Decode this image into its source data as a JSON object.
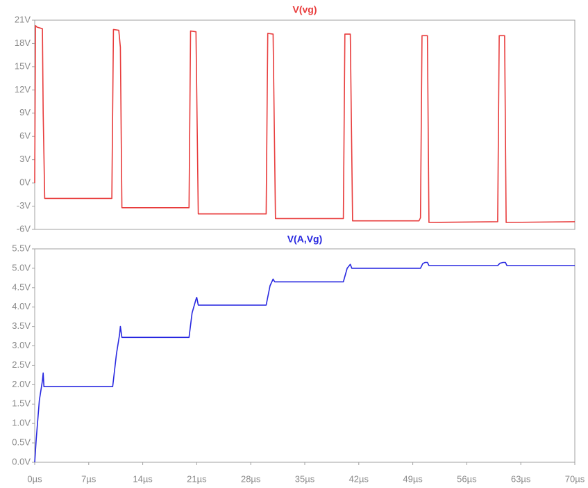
{
  "chart_data": [
    {
      "type": "line",
      "title": "V(vg)",
      "color": "#e83c3c",
      "x": [
        0,
        0.1,
        0.3,
        1.0,
        1.1,
        1.3,
        10.0,
        10.2,
        10.9,
        11.1,
        11.3,
        20.0,
        20.2,
        20.9,
        21.2,
        30.0,
        30.2,
        30.9,
        31.2,
        40.0,
        40.2,
        40.9,
        41.2,
        49.8,
        50.0,
        50.2,
        50.9,
        51.1,
        60.0,
        60.2,
        60.9,
        61.1,
        70
      ],
      "values": [
        0,
        20.3,
        20.1,
        19.9,
        9,
        -2,
        -2,
        19.8,
        19.7,
        17.5,
        -3.2,
        -3.2,
        19.6,
        19.5,
        -4,
        -4,
        19.3,
        19.2,
        -4.6,
        -4.6,
        19.2,
        19.2,
        -4.9,
        -4.9,
        -4.5,
        19.0,
        19.0,
        -5.1,
        -5.0,
        19.0,
        19.0,
        -5.1,
        -5.0
      ],
      "xlim": [
        0,
        70
      ],
      "ylim": [
        -6,
        21
      ],
      "yticks": [
        {
          "value": 21,
          "label": "21V"
        },
        {
          "value": 18,
          "label": "18V"
        },
        {
          "value": 15,
          "label": "15V"
        },
        {
          "value": 12,
          "label": "12V"
        },
        {
          "value": 9,
          "label": "9V"
        },
        {
          "value": 6,
          "label": "6V"
        },
        {
          "value": 3,
          "label": "3V"
        },
        {
          "value": 0,
          "label": "0V"
        },
        {
          "value": -3,
          "label": "-3V"
        },
        {
          "value": -6,
          "label": "-6V"
        }
      ]
    },
    {
      "type": "line",
      "title": "V(A,Vg)",
      "color": "#2828e0",
      "x": [
        0,
        0.2,
        0.6,
        1.0,
        1.1,
        1.2,
        10.1,
        10.6,
        11.0,
        11.1,
        11.3,
        20.0,
        20.4,
        20.9,
        21.0,
        21.2,
        30.0,
        30.5,
        30.9,
        31.1,
        40.0,
        40.5,
        40.9,
        41.1,
        50.0,
        50.3,
        50.6,
        50.9,
        51.1,
        60.0,
        60.3,
        60.7,
        61.0,
        61.2,
        70
      ],
      "values": [
        0,
        0.6,
        1.6,
        2.1,
        2.3,
        1.95,
        1.95,
        2.8,
        3.3,
        3.5,
        3.22,
        3.22,
        3.85,
        4.2,
        4.25,
        4.05,
        4.05,
        4.55,
        4.72,
        4.65,
        4.65,
        5.0,
        5.1,
        5.0,
        5.0,
        5.12,
        5.15,
        5.15,
        5.07,
        5.07,
        5.13,
        5.15,
        5.15,
        5.07,
        5.07
      ],
      "xlim": [
        0,
        70
      ],
      "ylim": [
        0,
        5.5
      ],
      "xticks": [
        {
          "value": 0,
          "label": "0µs"
        },
        {
          "value": 7,
          "label": "7µs"
        },
        {
          "value": 14,
          "label": "14µs"
        },
        {
          "value": 21,
          "label": "21µs"
        },
        {
          "value": 28,
          "label": "28µs"
        },
        {
          "value": 35,
          "label": "35µs"
        },
        {
          "value": 42,
          "label": "42µs"
        },
        {
          "value": 49,
          "label": "49µs"
        },
        {
          "value": 56,
          "label": "56µs"
        },
        {
          "value": 63,
          "label": "63µs"
        },
        {
          "value": 70,
          "label": "70µs"
        }
      ],
      "yticks": [
        {
          "value": 5.5,
          "label": "5.5V"
        },
        {
          "value": 5,
          "label": "5.0V"
        },
        {
          "value": 4.5,
          "label": "4.5V"
        },
        {
          "value": 4,
          "label": "4.0V"
        },
        {
          "value": 3.5,
          "label": "3.5V"
        },
        {
          "value": 3,
          "label": "3.0V"
        },
        {
          "value": 2.5,
          "label": "2.5V"
        },
        {
          "value": 2,
          "label": "2.0V"
        },
        {
          "value": 1.5,
          "label": "1.5V"
        },
        {
          "value": 1,
          "label": "1.0V"
        },
        {
          "value": 0.5,
          "label": "0.5V"
        },
        {
          "value": 0,
          "label": "0.0V"
        }
      ]
    }
  ]
}
